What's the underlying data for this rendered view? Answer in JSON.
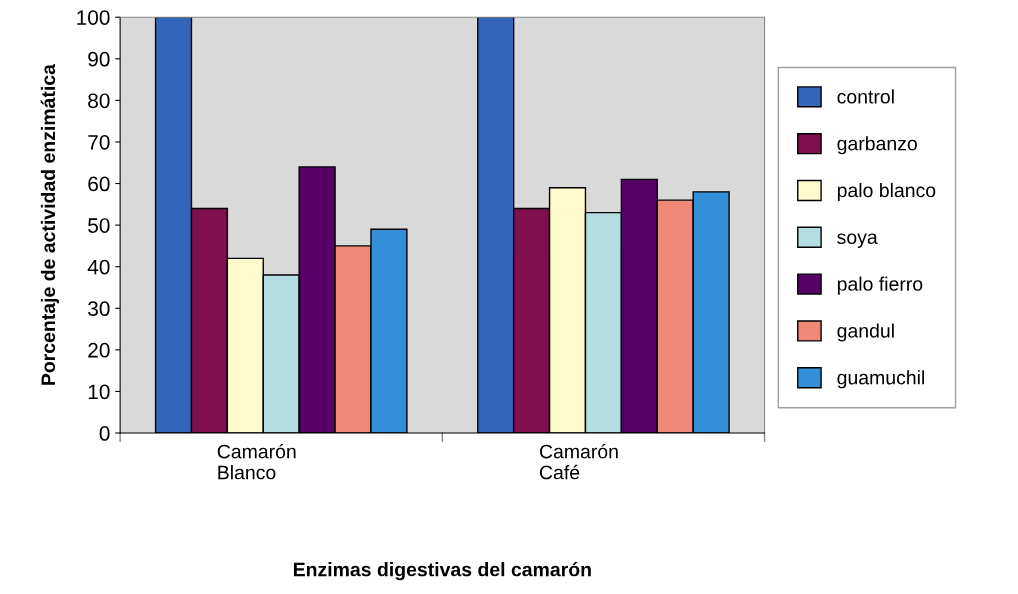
{
  "chart_data": {
    "type": "bar",
    "xlabel": "Enzimas digestivas del camarón",
    "ylabel": "Porcentaje de actividad enzimática",
    "categories": [
      "Camarón\nBlanco",
      "Camarón\nCafé"
    ],
    "series": [
      {
        "name": "control",
        "color": "#3366bb",
        "values": [
          100,
          100
        ]
      },
      {
        "name": "garbanzo",
        "color": "#7f0f4f",
        "values": [
          54,
          54
        ]
      },
      {
        "name": "palo blanco",
        "color": "#fffacc",
        "values": [
          42,
          59
        ]
      },
      {
        "name": "soya",
        "color": "#b3dde0",
        "values": [
          38,
          53
        ]
      },
      {
        "name": "palo fierro",
        "color": "#560068",
        "values": [
          64,
          61
        ]
      },
      {
        "name": "gandul",
        "color": "#f08878",
        "values": [
          45,
          56
        ]
      },
      {
        "name": "guamuchil",
        "color": "#3390d8",
        "values": [
          49,
          58
        ]
      }
    ],
    "ylim": [
      0,
      100
    ],
    "yticks": [
      0,
      10,
      20,
      30,
      40,
      50,
      60,
      70,
      80,
      90,
      100
    ],
    "grid": false,
    "legend": "right"
  }
}
